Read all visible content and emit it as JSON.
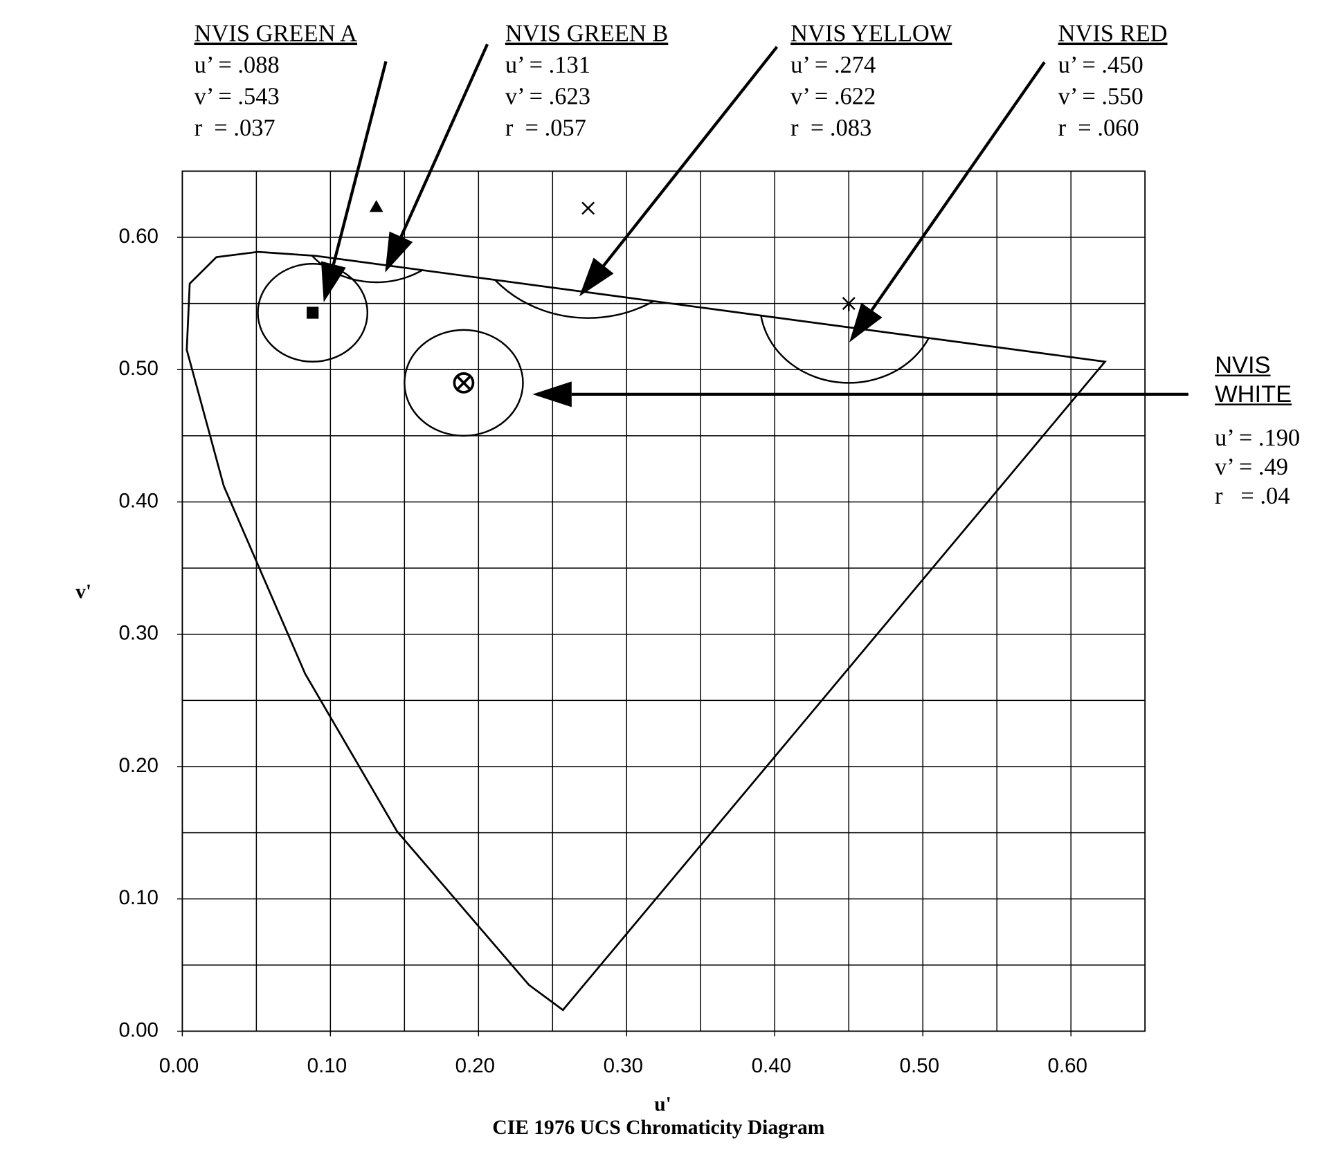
{
  "chart_data": {
    "type": "chromaticity",
    "title": "CIE 1976 UCS Chromaticity Diagram",
    "x_label": "u'",
    "y_label": "v'",
    "xlim": [
      0,
      0.65
    ],
    "ylim": [
      0,
      0.65
    ],
    "xticks": [
      {
        "value": 0,
        "label": "0.00"
      },
      {
        "value": 0.1,
        "label": "0.10"
      },
      {
        "value": 0.2,
        "label": "0.20"
      },
      {
        "value": 0.3,
        "label": "0.30"
      },
      {
        "value": 0.4,
        "label": "0.40"
      },
      {
        "value": 0.5,
        "label": "0.50"
      },
      {
        "value": 0.6,
        "label": "0.60"
      }
    ],
    "yticks": [
      {
        "value": 0,
        "label": "0.00"
      },
      {
        "value": 0.1,
        "label": "0.10"
      },
      {
        "value": 0.2,
        "label": "0.20"
      },
      {
        "value": 0.3,
        "label": "0.30"
      },
      {
        "value": 0.4,
        "label": "0.40"
      },
      {
        "value": 0.5,
        "label": "0.50"
      },
      {
        "value": 0.6,
        "label": "0.60"
      }
    ],
    "minor_xticks": [
      0.05,
      0.15,
      0.25,
      0.35,
      0.45,
      0.55
    ],
    "minor_yticks": [
      0.05,
      0.15,
      0.25,
      0.35,
      0.45,
      0.55
    ],
    "grid": true,
    "locus": {
      "u": [
        0.257,
        0.234,
        0.145,
        0.083,
        0.028,
        0.003,
        0.005,
        0.023,
        0.051,
        0.09,
        0.623
      ],
      "v": [
        0.016,
        0.035,
        0.151,
        0.27,
        0.412,
        0.515,
        0.565,
        0.585,
        0.589,
        0.586,
        0.506
      ]
    },
    "regions": [
      {
        "name": "NVIS GREEN A",
        "u": 0.088,
        "v": 0.543,
        "r": 0.037,
        "u_label": "u’ = .088",
        "v_label": "v’ = .543",
        "r_label": "r  = .037",
        "marker": "square"
      },
      {
        "name": "NVIS GREEN B",
        "u": 0.131,
        "v": 0.623,
        "r": 0.057,
        "u_label": "u’ = .131",
        "v_label": "v’ = .623",
        "r_label": "r  = .057",
        "marker": "triangle"
      },
      {
        "name": "NVIS YELLOW",
        "u": 0.274,
        "v": 0.622,
        "r": 0.083,
        "u_label": "u’ = .274",
        "v_label": "v’ = .622",
        "r_label": "r  = .083",
        "marker": "x"
      },
      {
        "name": "NVIS RED",
        "u": 0.45,
        "v": 0.55,
        "r": 0.06,
        "u_label": "u’ = .450",
        "v_label": "v’ = .550",
        "r_label": "r  = .060",
        "marker": "star"
      },
      {
        "name": "NVIS WHITE",
        "u": 0.19,
        "v": 0.49,
        "r": 0.04,
        "u_label": "u’ = .190",
        "v_label": "v’ = .49",
        "r_label": "r   = .04",
        "marker": "circled-x"
      }
    ]
  }
}
